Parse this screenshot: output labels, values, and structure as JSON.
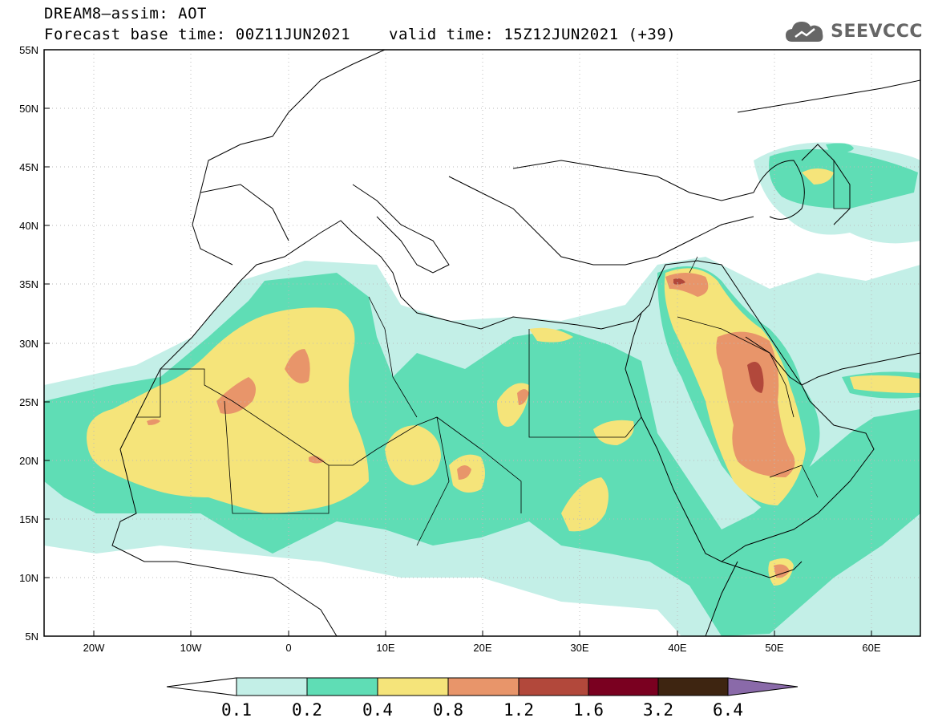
{
  "title": {
    "line1": "DREAM8–assim: AOT",
    "forecast_base": "Forecast base time: 00Z11JUN2021",
    "valid_time": "valid time: 15Z12JUN2021 (+39)"
  },
  "logo": {
    "text": "SEEVCCC",
    "icon": "cloud-icon"
  },
  "map": {
    "lon_range": [
      -25,
      65
    ],
    "lat_range": [
      5,
      55
    ],
    "lat_ticks": [
      "55N",
      "50N",
      "45N",
      "40N",
      "35N",
      "30N",
      "25N",
      "20N",
      "15N",
      "10N",
      "5N"
    ],
    "lon_ticks": [
      "20W",
      "10W",
      "0",
      "10E",
      "20E",
      "30E",
      "40E",
      "50E",
      "60E"
    ],
    "gridlines": "dotted"
  },
  "colorbar": {
    "levels": [
      "0.1",
      "0.2",
      "0.4",
      "0.8",
      "1.2",
      "1.6",
      "3.2",
      "6.4"
    ],
    "colors": [
      "#ffffff",
      "#c3efe7",
      "#5fddb5",
      "#f5e47a",
      "#e8956a",
      "#b2483b",
      "#7a0020",
      "#3e2511",
      "#8a6aa9"
    ]
  }
}
